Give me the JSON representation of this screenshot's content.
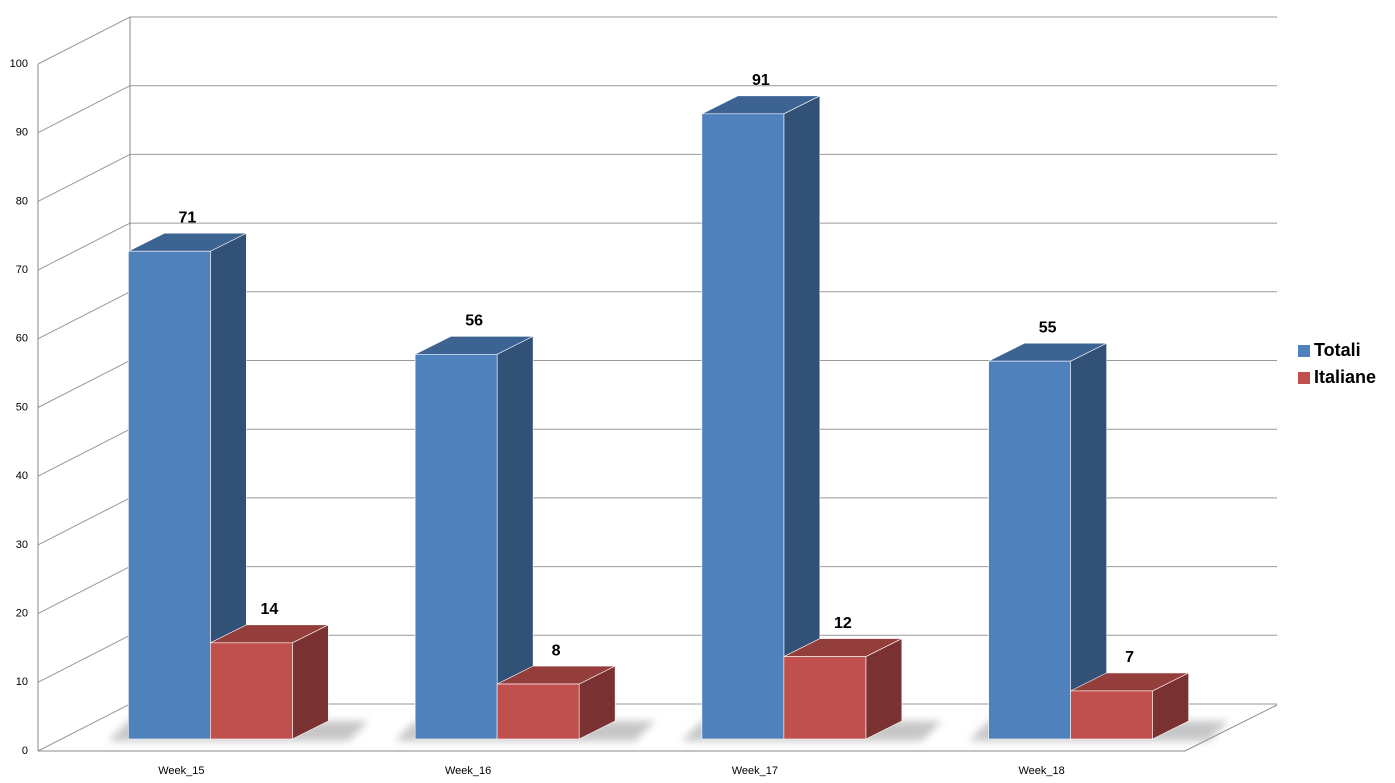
{
  "chart_data": {
    "type": "bar3d",
    "categories": [
      "Week_15",
      "Week_16",
      "Week_17",
      "Week_18"
    ],
    "series": [
      {
        "name": "Totali",
        "color": "#4f81bd",
        "values": [
          71,
          56,
          91,
          55
        ]
      },
      {
        "name": "Italiane",
        "color": "#c0504d",
        "values": [
          14,
          8,
          12,
          7
        ]
      }
    ],
    "ylim": [
      0,
      100
    ],
    "yticks": [
      0,
      10,
      20,
      30,
      40,
      50,
      60,
      70,
      80,
      90,
      100
    ],
    "grid": true,
    "legend": "right"
  }
}
